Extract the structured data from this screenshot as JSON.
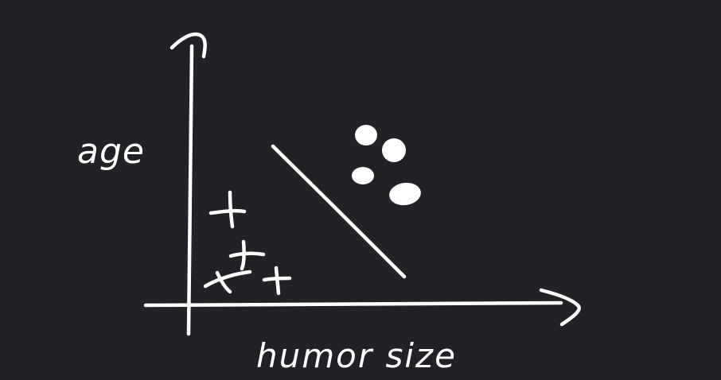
{
  "diagram": {
    "y_axis_label": "age",
    "x_axis_label": "humor size",
    "class_markers": {
      "plus_count": 4,
      "dot_count": 4
    },
    "stroke_color": "#ffffff",
    "background_color": "#222226"
  }
}
